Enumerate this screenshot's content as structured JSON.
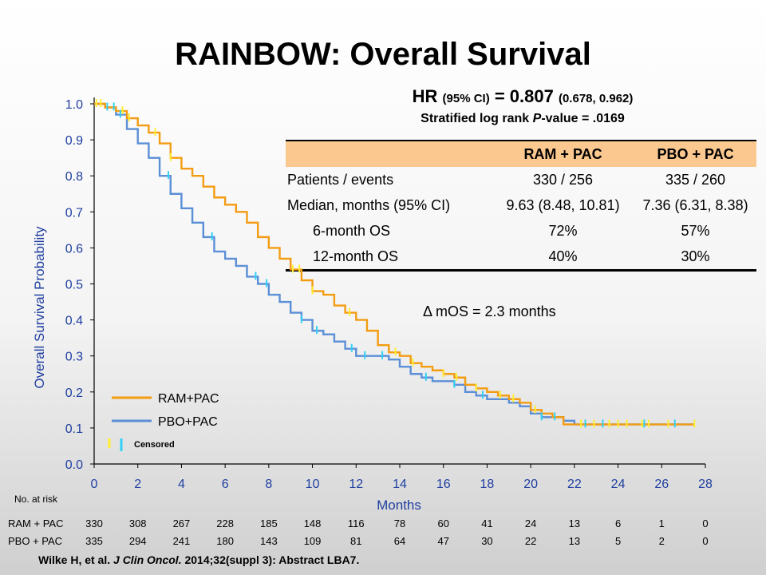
{
  "title": "RAINBOW: Overall Survival",
  "hr": {
    "prefix": "HR",
    "ci_label": "(95% CI)",
    "equals": "= 0.807",
    "ci": "(0.678, 0.962)",
    "pvalue_text_a": "Stratified log rank ",
    "pvalue_text_p": "P",
    "pvalue_text_b": "-value = .0169"
  },
  "table": {
    "headers": [
      "",
      "RAM + PAC",
      "PBO + PAC"
    ],
    "rows": [
      [
        "Patients / events",
        "330 / 256",
        "335 / 260"
      ],
      [
        "Median, months  (95% CI)",
        "9.63 (8.48, 10.81)",
        "7.36 (6.31, 8.38)"
      ],
      [
        "6-month OS",
        "72%",
        "57%"
      ],
      [
        "12-month OS",
        "40%",
        "30%"
      ]
    ]
  },
  "delta_text": "Δ mOS  = 2.3 months",
  "legend": {
    "ram": "RAM+PAC",
    "pbo": "PBO+PAC",
    "censored": "Censored"
  },
  "risk_table": {
    "title": "No. at risk",
    "rows": [
      {
        "label": "RAM + PAC",
        "values": [
          "330",
          "308",
          "267",
          "228",
          "185",
          "148",
          "116",
          "78",
          "60",
          "41",
          "24",
          "13",
          "6",
          "1",
          "0"
        ]
      },
      {
        "label": "PBO + PAC",
        "values": [
          "335",
          "294",
          "241",
          "180",
          "143",
          "109",
          "81",
          "64",
          "47",
          "30",
          "22",
          "13",
          "5",
          "2",
          "0"
        ]
      }
    ]
  },
  "citation_a": "Wilke H, et al. ",
  "citation_journal": "J Clin Oncol.",
  "citation_b": " 2014;32(suppl 3): Abstract LBA7.",
  "colors": {
    "ram": "#f39c12",
    "pbo": "#5b8fd6",
    "censor_ram": "#ffee33",
    "censor_pbo": "#33d1f5",
    "axis_text": "#1f3fa0"
  },
  "chart_data": {
    "type": "line",
    "xlabel": "Months",
    "ylabel": "Overall Survival Probability",
    "xlim": [
      0,
      28
    ],
    "ylim": [
      0,
      1.0
    ],
    "x_ticks": [
      "0",
      "2",
      "4",
      "6",
      "8",
      "10",
      "12",
      "14",
      "16",
      "18",
      "20",
      "22",
      "24",
      "26",
      "28"
    ],
    "y_ticks": [
      "0.0",
      "0.1",
      "0.2",
      "0.3",
      "0.4",
      "0.5",
      "0.6",
      "0.7",
      "0.8",
      "0.9",
      "1.0"
    ],
    "series": [
      {
        "name": "RAM+PAC",
        "x": [
          0,
          0.5,
          1,
          1.5,
          2,
          2.5,
          3,
          3.5,
          4,
          4.5,
          5,
          5.5,
          6,
          6.5,
          7,
          7.5,
          8,
          8.5,
          9,
          9.5,
          10,
          10.5,
          11,
          11.5,
          12,
          12.5,
          13,
          13.5,
          14,
          14.5,
          15,
          15.5,
          16,
          16.5,
          17,
          17.5,
          18,
          18.5,
          19,
          19.5,
          20,
          20.5,
          21,
          21.5,
          22,
          23,
          24,
          25,
          26,
          27.5
        ],
        "y": [
          1.0,
          0.99,
          0.98,
          0.96,
          0.94,
          0.92,
          0.89,
          0.85,
          0.82,
          0.8,
          0.77,
          0.74,
          0.72,
          0.7,
          0.67,
          0.63,
          0.6,
          0.57,
          0.54,
          0.51,
          0.48,
          0.47,
          0.44,
          0.42,
          0.4,
          0.37,
          0.33,
          0.31,
          0.3,
          0.28,
          0.27,
          0.26,
          0.25,
          0.24,
          0.22,
          0.21,
          0.2,
          0.19,
          0.18,
          0.17,
          0.15,
          0.14,
          0.13,
          0.11,
          0.11,
          0.11,
          0.11,
          0.11,
          0.11,
          0.11
        ]
      },
      {
        "name": "PBO+PAC",
        "x": [
          0,
          0.5,
          1,
          1.5,
          2,
          2.5,
          3,
          3.5,
          4,
          4.5,
          5,
          5.5,
          6,
          6.5,
          7,
          7.5,
          8,
          8.5,
          9,
          9.5,
          10,
          10.5,
          11,
          11.5,
          12,
          12.5,
          13,
          13.5,
          14,
          14.5,
          15,
          15.5,
          16,
          16.5,
          17,
          17.5,
          18,
          18.5,
          19,
          19.5,
          20,
          20.5,
          21,
          21.5,
          22,
          23,
          24,
          25,
          26,
          27.5
        ],
        "y": [
          1.0,
          0.99,
          0.97,
          0.93,
          0.89,
          0.85,
          0.8,
          0.75,
          0.71,
          0.67,
          0.63,
          0.59,
          0.57,
          0.55,
          0.52,
          0.5,
          0.47,
          0.45,
          0.42,
          0.4,
          0.37,
          0.36,
          0.34,
          0.32,
          0.3,
          0.3,
          0.3,
          0.29,
          0.27,
          0.25,
          0.24,
          0.23,
          0.23,
          0.22,
          0.2,
          0.19,
          0.18,
          0.18,
          0.17,
          0.16,
          0.14,
          0.13,
          0.13,
          0.12,
          0.11,
          0.11,
          0.11,
          0.11,
          0.11,
          0.11
        ]
      }
    ],
    "censor_marks": [
      {
        "series": "RAM+PAC",
        "x": [
          0.1,
          0.3,
          1.3,
          1.6,
          2.8,
          3.5,
          9.1,
          9.4,
          10.0,
          11.7,
          13.8,
          14.6,
          16.0,
          16.6,
          17.5,
          18.6,
          19.2,
          20.2,
          22.3,
          22.9,
          23.6,
          24.0,
          24.4,
          25.1,
          25.4,
          26.3,
          27.5
        ]
      },
      {
        "series": "PBO+PAC",
        "x": [
          0.6,
          0.9,
          1.2,
          3.4,
          5.4,
          7.4,
          7.9,
          9.5,
          10.2,
          11.8,
          12.4,
          13.2,
          15.2,
          16.5,
          17.8,
          20.5,
          21.1,
          22.5,
          23.3,
          25.2,
          26.6
        ]
      }
    ]
  }
}
